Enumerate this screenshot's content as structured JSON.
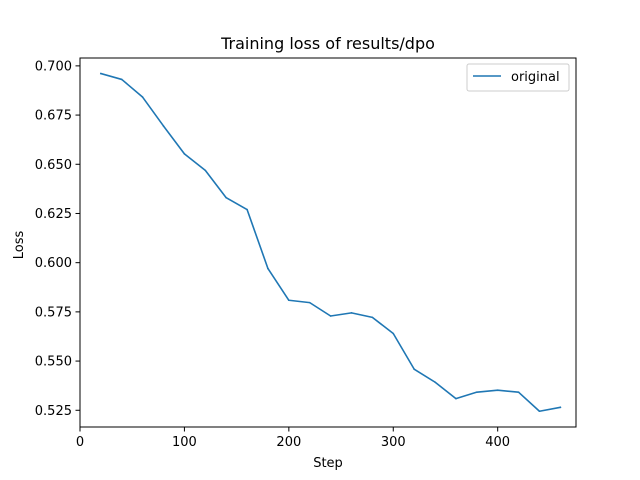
{
  "chart_data": {
    "type": "line",
    "title": "Training loss of results/dpo",
    "xlabel": "Step",
    "ylabel": "Loss",
    "xlim": [
      0,
      475
    ],
    "ylim": [
      0.5165,
      0.704
    ],
    "xticks": [
      0,
      100,
      200,
      300,
      400
    ],
    "yticks": [
      0.525,
      0.55,
      0.575,
      0.6,
      0.625,
      0.65,
      0.675,
      0.7
    ],
    "ytick_labels": [
      "0.525",
      "0.550",
      "0.575",
      "0.600",
      "0.625",
      "0.650",
      "0.675",
      "0.700"
    ],
    "grid": false,
    "legend_position": "top-right",
    "series": [
      {
        "name": "original",
        "color": "#1f77b4",
        "x": [
          20,
          40,
          60,
          80,
          100,
          120,
          140,
          160,
          180,
          200,
          220,
          240,
          260,
          280,
          300,
          320,
          340,
          360,
          380,
          400,
          420,
          440,
          460
        ],
        "y": [
          0.6961,
          0.6931,
          0.6841,
          0.6694,
          0.6553,
          0.6469,
          0.633,
          0.627,
          0.597,
          0.5809,
          0.5797,
          0.5729,
          0.5745,
          0.5722,
          0.564,
          0.5459,
          0.5393,
          0.5309,
          0.5342,
          0.5352,
          0.5342,
          0.5245,
          0.5265
        ]
      }
    ]
  }
}
